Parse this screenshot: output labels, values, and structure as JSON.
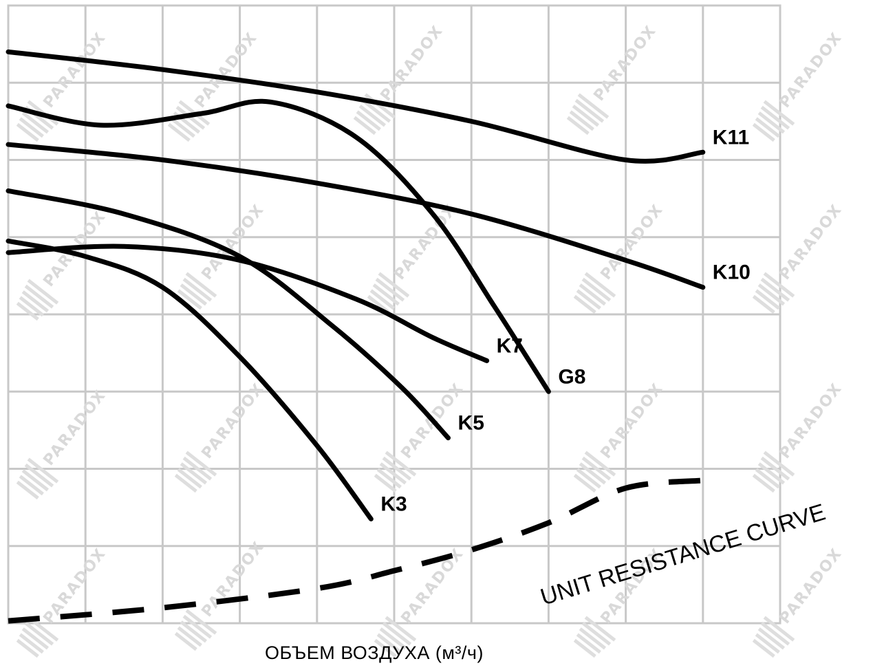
{
  "chart_data": {
    "type": "line",
    "title": "",
    "xlabel": "ОБЪЕМ ВОЗДУХА (м³/ч)",
    "ylabel": "",
    "grid": true,
    "xlim": [
      0,
      10
    ],
    "ylim": [
      0,
      8
    ],
    "series": [
      {
        "name": "K11",
        "style": "solid",
        "x": [
          0,
          2,
          4,
          6,
          8,
          9
        ],
        "y": [
          7.4,
          7.17,
          6.88,
          6.5,
          6.0,
          6.1
        ]
      },
      {
        "name": "G8",
        "style": "solid",
        "x": [
          0,
          1.2,
          2.5,
          3.4,
          4.5,
          5.5,
          6.3,
          7.0
        ],
        "y": [
          6.7,
          6.45,
          6.6,
          6.75,
          6.3,
          5.3,
          4.1,
          3.0
        ]
      },
      {
        "name": "K10",
        "style": "solid",
        "x": [
          0,
          2,
          4,
          6,
          8,
          9
        ],
        "y": [
          6.2,
          6.0,
          5.7,
          5.3,
          4.7,
          4.35
        ]
      },
      {
        "name": "K7",
        "style": "solid",
        "x": [
          0,
          1.5,
          3,
          4.5,
          5.5,
          6.2
        ],
        "y": [
          4.8,
          4.88,
          4.7,
          4.2,
          3.7,
          3.4
        ]
      },
      {
        "name": "K5",
        "style": "solid",
        "x": [
          0,
          1.5,
          3,
          4.2,
          5.1,
          5.7
        ],
        "y": [
          5.6,
          5.3,
          4.75,
          3.85,
          3.05,
          2.4
        ]
      },
      {
        "name": "K3",
        "style": "solid",
        "x": [
          0,
          1,
          2,
          3,
          4,
          4.7
        ],
        "y": [
          4.95,
          4.75,
          4.35,
          3.45,
          2.3,
          1.35
        ]
      },
      {
        "name": "UNIT RESISTANCE CURVE",
        "style": "dashed",
        "x": [
          0,
          2,
          4,
          5,
          6,
          7,
          8,
          9
        ],
        "y": [
          0.03,
          0.2,
          0.45,
          0.68,
          0.95,
          1.3,
          1.75,
          1.85
        ]
      }
    ]
  },
  "watermark": "PARADOX"
}
